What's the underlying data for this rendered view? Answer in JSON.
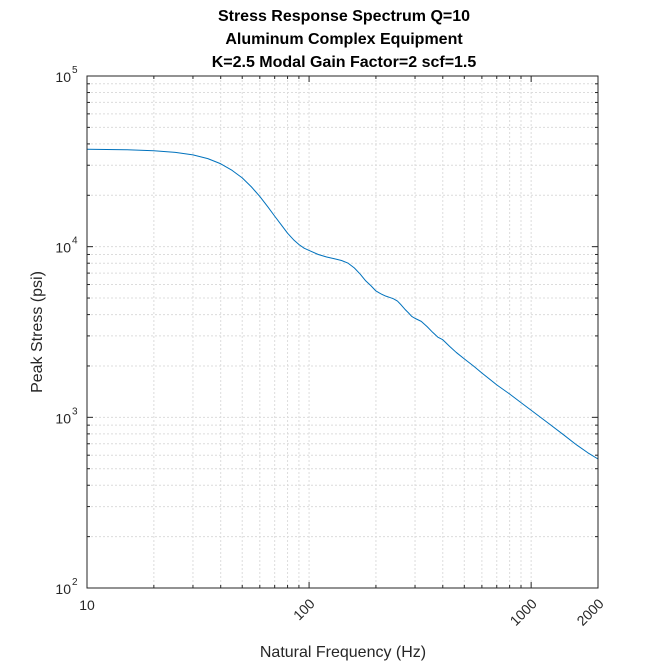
{
  "chart_data": {
    "type": "line",
    "title": [
      "Stress Response Spectrum Q=10",
      "Aluminum Complex Equipment",
      "K=2.5  Modal Gain Factor=2  scf=1.5"
    ],
    "xlabel": "Natural Frequency (Hz)",
    "ylabel": "Peak Stress (psi)",
    "xscale": "log",
    "yscale": "log",
    "xlim": [
      10,
      2000
    ],
    "ylim": [
      100,
      100000
    ],
    "grid": true,
    "x_ticks": [
      {
        "value": 10,
        "label": "10"
      },
      {
        "value": 100,
        "label": "100"
      },
      {
        "value": 1000,
        "label": "1000"
      },
      {
        "value": 2000,
        "label": "2000"
      }
    ],
    "y_ticks": [
      {
        "value": 100,
        "base": "10",
        "exp": "2"
      },
      {
        "value": 1000,
        "base": "10",
        "exp": "3"
      },
      {
        "value": 10000,
        "base": "10",
        "exp": "4"
      },
      {
        "value": 100000,
        "base": "10",
        "exp": "5"
      }
    ],
    "series": [
      {
        "name": "Stress Response Spectrum",
        "color": "#0072BD",
        "x": [
          10,
          15,
          20,
          25,
          30,
          35,
          40,
          45,
          50,
          55,
          60,
          65,
          70,
          75,
          80,
          85,
          90,
          95,
          100,
          110,
          120,
          130,
          140,
          150,
          160,
          170,
          180,
          190,
          200,
          210,
          220,
          230,
          240,
          250,
          260,
          270,
          280,
          290,
          300,
          320,
          340,
          360,
          380,
          400,
          430,
          460,
          500,
          550,
          600,
          700,
          800,
          900,
          1000,
          1200,
          1400,
          1600,
          1800,
          2000
        ],
        "y": [
          37200,
          37000,
          36500,
          35700,
          34500,
          32800,
          30600,
          28000,
          25300,
          22400,
          19700,
          17200,
          15100,
          13400,
          12000,
          11000,
          10300,
          9800,
          9500,
          9000,
          8700,
          8500,
          8300,
          8000,
          7500,
          6900,
          6300,
          5900,
          5500,
          5300,
          5150,
          5050,
          4950,
          4800,
          4550,
          4300,
          4100,
          3900,
          3800,
          3650,
          3400,
          3150,
          2950,
          2850,
          2600,
          2400,
          2200,
          2000,
          1820,
          1550,
          1370,
          1220,
          1100,
          920,
          790,
          690,
          620,
          570
        ]
      }
    ]
  }
}
